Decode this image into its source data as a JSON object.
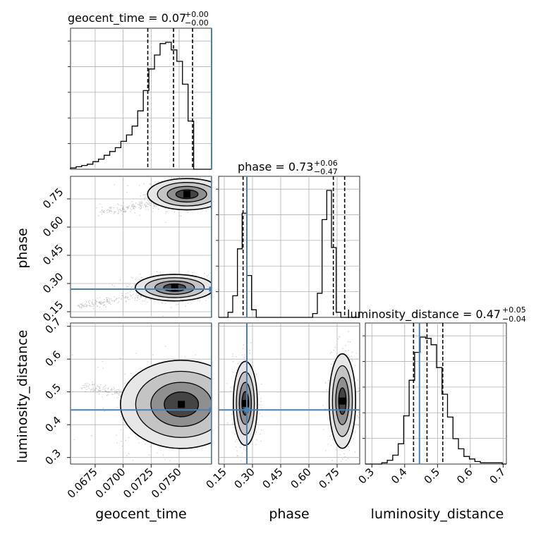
{
  "chart_data": {
    "type": "corner",
    "colors": {
      "truth": "#4682b4",
      "hist": "#000000",
      "grid": "#b0b0b0",
      "points": "#555555"
    },
    "parameters": [
      {
        "name": "geocent_time",
        "axis_label": "geocent_time",
        "title": "geocent_time = 0.07",
        "title_sup": "+0.00",
        "title_sub": "−0.00",
        "range": [
          0.0653,
          0.0779
        ],
        "ticks": [
          0.0675,
          0.07,
          0.0725,
          0.075
        ],
        "tick_labels": [
          "0.0675",
          "0.0700",
          "0.0725",
          "0.0750"
        ],
        "truth": 0.0779,
        "quantiles": [
          0.0722,
          0.0745,
          0.0762
        ],
        "hist_edges_start": 0.0653,
        "hist_bin_width": 0.0005,
        "hist": [
          1,
          2,
          3,
          4,
          6,
          8,
          11,
          14,
          17,
          22,
          27,
          34,
          46,
          62,
          79,
          90,
          99,
          100,
          94,
          85,
          67,
          38,
          0,
          0,
          0,
          0
        ]
      },
      {
        "name": "phase",
        "axis_label": "phase",
        "title": "phase = 0.73",
        "title_sup": "+0.06",
        "title_sub": "−0.47",
        "range": [
          0.12,
          0.87
        ],
        "ticks": [
          0.15,
          0.3,
          0.45,
          0.6,
          0.75
        ],
        "tick_labels": [
          "0.15",
          "0.30",
          "0.45",
          "0.60",
          "0.75"
        ],
        "truth": 0.27,
        "quantiles": [
          0.25,
          0.73,
          0.79
        ],
        "hist_edges_start": 0.12,
        "hist_bin_width": 0.025,
        "hist": [
          0,
          0,
          4,
          17,
          54,
          82,
          33,
          6,
          0,
          0,
          0,
          0,
          0,
          0,
          0,
          0,
          0,
          0,
          0,
          0,
          3,
          19,
          77,
          100,
          55,
          4,
          0,
          0,
          0,
          0
        ]
      },
      {
        "name": "luminosity_distance",
        "axis_label": "luminosity_distance",
        "title": "luminosity_distance = 0.47",
        "title_sup": "+0.05",
        "title_sub": "−0.04",
        "range": [
          0.28,
          0.71
        ],
        "ticks": [
          0.3,
          0.4,
          0.5,
          0.6,
          0.7
        ],
        "tick_labels": [
          "0.3",
          "0.4",
          "0.5",
          "0.6",
          "0.7"
        ],
        "truth": 0.445,
        "quantiles": [
          0.427,
          0.468,
          0.516
        ],
        "hist_edges_start": 0.28,
        "hist_bin_width": 0.0167,
        "hist": [
          0,
          0,
          0,
          1,
          3,
          7,
          16,
          38,
          66,
          88,
          100,
          99,
          94,
          76,
          55,
          37,
          20,
          12,
          6,
          4,
          2,
          1,
          1,
          1,
          1,
          0
        ]
      }
    ],
    "pairs": [
      {
        "x": 0,
        "y": 1,
        "modes": [
          {
            "cx": 0.0757,
            "cy": 0.775,
            "sx": 0.0011,
            "sy": 0.026
          },
          {
            "cx": 0.0746,
            "cy": 0.278,
            "sx": 0.0011,
            "sy": 0.022
          }
        ],
        "tails": [
          {
            "from": [
              0.068,
              0.68
            ],
            "to": [
              0.0745,
              0.745
            ]
          },
          {
            "from": [
              0.066,
              0.18
            ],
            "to": [
              0.0735,
              0.26
            ]
          }
        ]
      },
      {
        "x": 0,
        "y": 2,
        "modes": [
          {
            "cx": 0.0752,
            "cy": 0.462,
            "sx": 0.0017,
            "sy": 0.042
          }
        ],
        "tails": [
          {
            "from": [
              0.0665,
              0.52
            ],
            "to": [
              0.073,
              0.47
            ]
          }
        ]
      },
      {
        "x": 1,
        "y": 2,
        "modes": [
          {
            "cx": 0.262,
            "cy": 0.465,
            "sx": 0.02,
            "sy": 0.04
          },
          {
            "cx": 0.778,
            "cy": 0.472,
            "sx": 0.022,
            "sy": 0.045
          }
        ],
        "tails": []
      }
    ]
  }
}
